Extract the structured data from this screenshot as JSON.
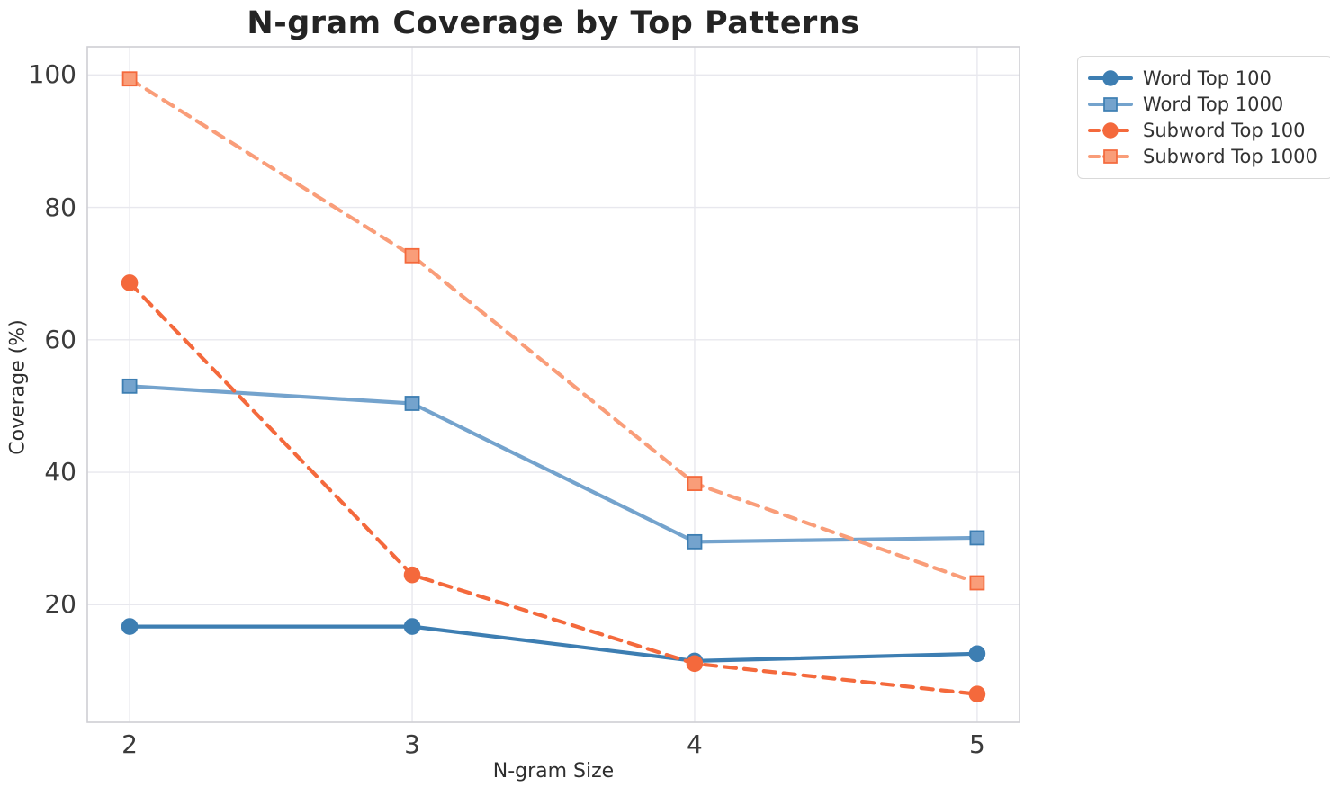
{
  "chart_data": {
    "type": "line",
    "title": "N-gram Coverage by Top Patterns",
    "xlabel": "N-gram Size",
    "ylabel": "Coverage (%)",
    "x": [
      2,
      3,
      4,
      5
    ],
    "x_tick_labels": [
      "2",
      "3",
      "4",
      "5"
    ],
    "y_ticks": [
      20,
      40,
      60,
      80,
      100
    ],
    "y_tick_labels": [
      "20",
      "40",
      "60",
      "80",
      "100"
    ],
    "xlim": [
      1.85,
      5.15
    ],
    "ylim": [
      2.25,
      104.25
    ],
    "grid": true,
    "legend_position": "outside-upper-right",
    "style": {
      "grid_color": "#e8e8ee",
      "spine_color": "#cfcfd4",
      "background": "#ffffff",
      "title_color": "#242424",
      "tick_color": "#3b3b3b"
    },
    "series": [
      {
        "name": "Word Top 100",
        "color": "#3d7eb2",
        "edge_color": "#3d7eb2",
        "marker": "circle",
        "line_style": "solid",
        "values": [
          16.7,
          16.7,
          11.5,
          12.6
        ]
      },
      {
        "name": "Word Top 1000",
        "color": "#74a3cd",
        "edge_color": "#3d7eb2",
        "marker": "square",
        "line_style": "solid",
        "values": [
          53.0,
          50.4,
          29.5,
          30.1
        ]
      },
      {
        "name": "Subword Top 100",
        "color": "#f4693c",
        "edge_color": "#f4693c",
        "marker": "circle",
        "line_style": "dashed",
        "values": [
          68.6,
          24.5,
          11.1,
          6.5
        ]
      },
      {
        "name": "Subword Top 1000",
        "color": "#f99d79",
        "edge_color": "#f4693c",
        "marker": "square",
        "line_style": "dashed",
        "values": [
          99.4,
          72.7,
          38.3,
          23.3
        ]
      }
    ]
  }
}
